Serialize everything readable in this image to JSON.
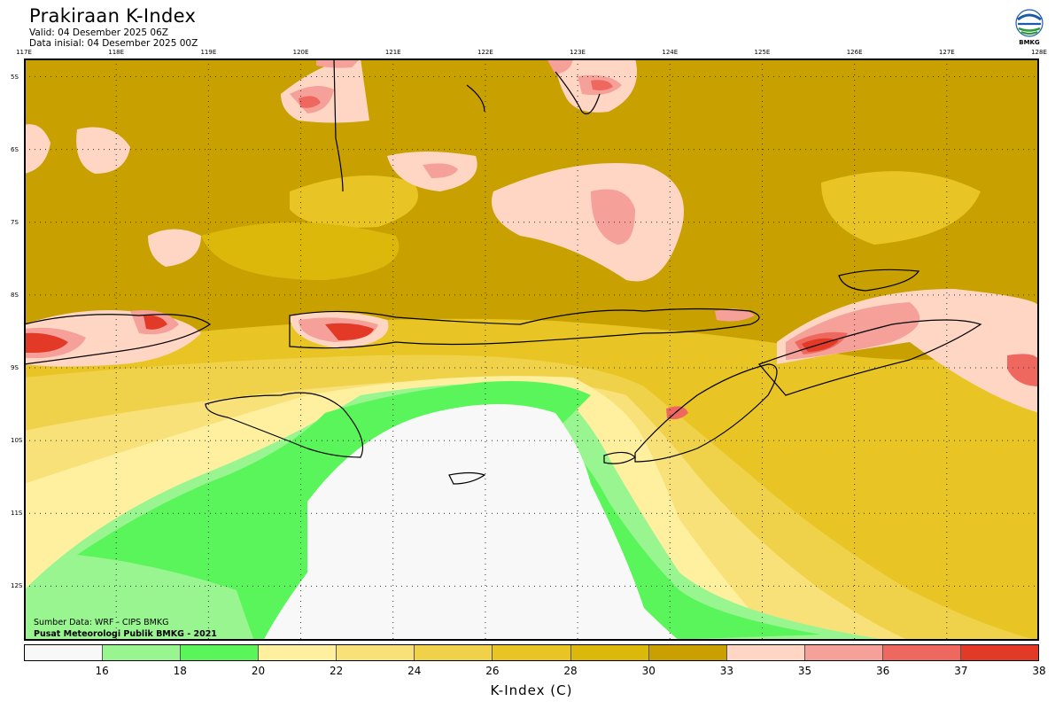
{
  "header": {
    "title": "Prakiraan K-Index",
    "valid": "Valid: 04 Desember 2025 06Z",
    "init": "Data inisial: 04 Desember 2025 00Z"
  },
  "logo": {
    "label": "BMKG"
  },
  "map": {
    "lon_ticks": [
      "117E",
      "118E",
      "119E",
      "120E",
      "121E",
      "122E",
      "123E",
      "124E",
      "125E",
      "126E",
      "127E",
      "128E"
    ],
    "lat_ticks": [
      "5S",
      "6S",
      "7S",
      "8S",
      "9S",
      "10S",
      "11S",
      "12S"
    ],
    "lon_range": [
      117,
      128
    ],
    "lat_range": [
      -4.75,
      -12.75
    ],
    "base_color": "#c8a000"
  },
  "credits": {
    "source": "Sumber Data: WRF - CIPS BMKG",
    "org": "Pusat Meteorologi Publik BMKG - 2021"
  },
  "colorbar": {
    "colors": [
      "#f8f8f8",
      "#98f590",
      "#5af55a",
      "#fff0a0",
      "#f9e17a",
      "#f0d24a",
      "#e8c524",
      "#dbb80a",
      "#c9a000",
      "#ffd6c4",
      "#f6a09a",
      "#ee6860",
      "#e33a28"
    ],
    "labels": [
      "16",
      "18",
      "20",
      "22",
      "24",
      "26",
      "28",
      "30",
      "33",
      "35",
      "36",
      "37",
      "38"
    ],
    "title": "K-Index (C)"
  }
}
